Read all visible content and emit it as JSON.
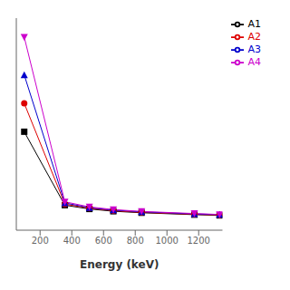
{
  "chart_data": {
    "type": "line",
    "xlabel": "Energy (keV)",
    "series": [
      {
        "name": "A1",
        "color": "#000000",
        "marker": "square",
        "x": [
          100,
          356,
          511,
          662,
          840,
          1173,
          1332
        ],
        "values": [
          0.5,
          0.112,
          0.092,
          0.08,
          0.072,
          0.062,
          0.058
        ]
      },
      {
        "name": "A2",
        "color": "#dd0000",
        "marker": "circle",
        "x": [
          100,
          356,
          511,
          662,
          840,
          1173,
          1332
        ],
        "values": [
          0.65,
          0.118,
          0.096,
          0.083,
          0.074,
          0.064,
          0.06
        ]
      },
      {
        "name": "A3",
        "color": "#0000cc",
        "marker": "triangle-up",
        "x": [
          100,
          356,
          511,
          662,
          840,
          1173,
          1332
        ],
        "values": [
          0.8,
          0.124,
          0.099,
          0.086,
          0.077,
          0.066,
          0.062
        ]
      },
      {
        "name": "A4",
        "color": "#cc00cc",
        "marker": "triangle-down",
        "x": [
          100,
          356,
          511,
          662,
          840,
          1173,
          1332
        ],
        "values": [
          1.0,
          0.13,
          0.103,
          0.089,
          0.079,
          0.068,
          0.063
        ]
      }
    ],
    "xlim": [
      50,
      1350
    ],
    "xticks": [
      200,
      400,
      600,
      800,
      1000,
      1200
    ],
    "ylim": [
      -0.02,
      1.1
    ],
    "tick_labels": "x",
    "legend": "right",
    "grid": false
  }
}
